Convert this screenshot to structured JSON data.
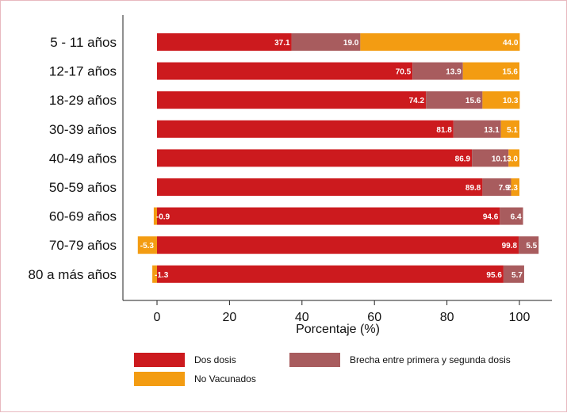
{
  "chart_data": {
    "type": "bar",
    "orientation": "horizontal",
    "stacked": true,
    "xlabel": "Porcentaje (%)",
    "ylabel": "",
    "xlim": [
      -9,
      105
    ],
    "xticks": [
      "0",
      "20",
      "40",
      "60",
      "80",
      "100"
    ],
    "grid": false,
    "legend_position": "bottom",
    "categories": [
      "5 - 11 años",
      "12-17 años",
      "18-29 años",
      "30-39 años",
      "40-49 años",
      "50-59 años",
      "60-69 años",
      "70-79 años",
      "80 a más años"
    ],
    "series": [
      {
        "name": "Dos dosis",
        "color": "#cc1a1e",
        "values": [
          37.1,
          70.5,
          74.2,
          81.8,
          86.9,
          89.8,
          94.6,
          99.8,
          95.6
        ],
        "labels": [
          "37.1",
          "70.5",
          "74.2",
          "81.8",
          "86.9",
          "89.8",
          "94.6",
          "99.8",
          "95.6"
        ]
      },
      {
        "name": "Brecha entre primera y segunda dosis",
        "color": "#a85c5e",
        "values": [
          19.0,
          13.9,
          15.6,
          13.1,
          10.1,
          7.9,
          6.4,
          5.5,
          5.7
        ],
        "labels": [
          "19.0",
          "13.9",
          "15.6",
          "13.1",
          "10.1",
          "7.9",
          "6.4",
          "5.5",
          "5.7"
        ]
      },
      {
        "name": "No Vacunados",
        "color": "#f39c12",
        "values": [
          44.0,
          15.6,
          10.3,
          5.1,
          3.0,
          2.3,
          -0.9,
          -5.3,
          -1.3
        ],
        "labels": [
          "44.0",
          "15.6",
          "10.3",
          "5.1",
          "3.0",
          "2.3",
          "-0.9",
          "-5.3",
          "-1.3"
        ]
      }
    ]
  }
}
